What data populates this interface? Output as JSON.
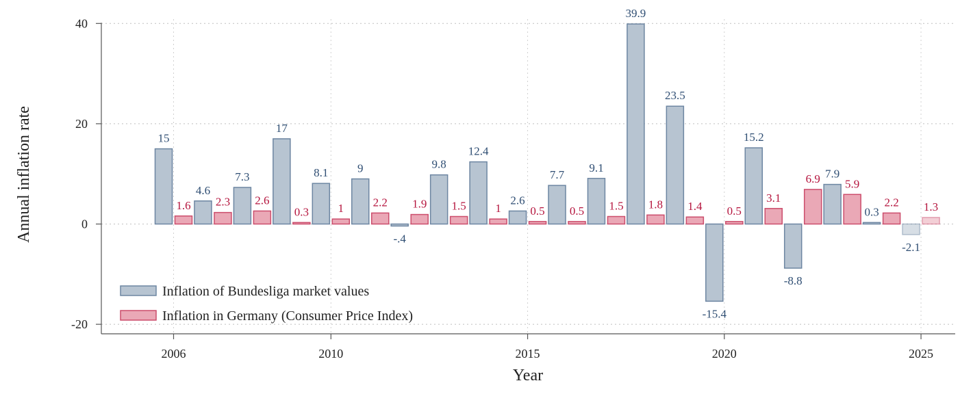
{
  "chart_data": {
    "type": "bar",
    "title": "",
    "xlabel": "Year",
    "ylabel": "Annual inflation rate",
    "ylim": [
      -20,
      40
    ],
    "yticks": [
      "-20",
      "0",
      "20",
      "40"
    ],
    "xticks": [
      "2006",
      "2010",
      "2015",
      "2020",
      "2025"
    ],
    "grid": true,
    "legend_position": "bottom-left",
    "categories": [
      2006,
      2007,
      2008,
      2009,
      2010,
      2011,
      2012,
      2013,
      2014,
      2015,
      2016,
      2017,
      2018,
      2019,
      2020,
      2021,
      2022,
      2023,
      2024,
      2025
    ],
    "series": [
      {
        "name": "Inflation of Bundesliga market values",
        "color": "#b7c4d1",
        "stroke": "#6d86a2",
        "label_color": "#2f4e73",
        "values": [
          15,
          4.6,
          7.3,
          17,
          8.1,
          9,
          -0.4,
          9.8,
          12.4,
          2.6,
          7.7,
          9.1,
          39.9,
          23.5,
          -15.4,
          15.2,
          -8.8,
          7.9,
          0.3,
          -2.1
        ],
        "labels": [
          "15",
          "4.6",
          "7.3",
          "17",
          "8.1",
          "9",
          "-.4",
          "9.8",
          "12.4",
          "2.6",
          "7.7",
          "9.1",
          "39.9",
          "23.5",
          "-15.4",
          "15.2",
          "-8.8",
          "7.9",
          "0.3",
          "-2.1"
        ]
      },
      {
        "name": "Inflation in Germany (Consumer Price Index)",
        "color": "#eaa8b6",
        "stroke": "#cc4d6c",
        "label_color": "#b5153e",
        "values": [
          1.6,
          2.3,
          2.6,
          0.3,
          1,
          2.2,
          1.9,
          1.5,
          1,
          0.5,
          0.5,
          1.5,
          1.8,
          1.4,
          0.5,
          3.1,
          6.9,
          5.9,
          2.2,
          1.3
        ],
        "labels": [
          "1.6",
          "2.3",
          "2.6",
          "0.3",
          "1",
          "2.2",
          "1.9",
          "1.5",
          "1",
          "0.5",
          "0.5",
          "1.5",
          "1.8",
          "1.4",
          "0.5",
          "3.1",
          "6.9",
          "5.9",
          "2.2",
          "1.3"
        ]
      }
    ],
    "faded_category": 2025
  }
}
